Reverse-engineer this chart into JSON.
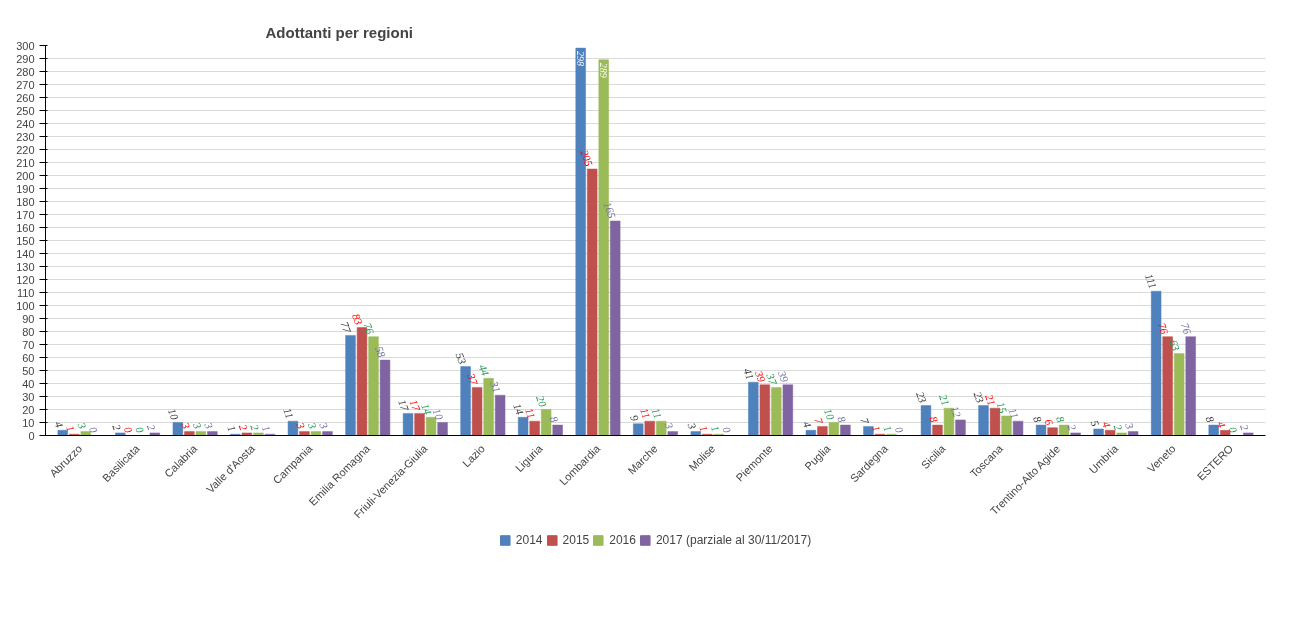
{
  "chart_data": {
    "type": "bar",
    "title": "Adottanti per regioni",
    "categories": [
      "Abruzzo",
      "Basilicata",
      "Calabria",
      "Valle d'Aosta",
      "Campania",
      "Emilia Romagna",
      "Friuli-Venezia-Giulia",
      "Lazio",
      "Liguria",
      "Lombardia",
      "Marche",
      "Molise",
      "Piemonte",
      "Puglia",
      "Sardegna",
      "Sicilia",
      "Toscana",
      "Trentino-Alto Agide",
      "Umbria",
      "Veneto",
      "ESTERO"
    ],
    "series": [
      {
        "name": "2014",
        "color": "#4f81bd",
        "values": [
          4,
          2,
          10,
          1,
          11,
          77,
          17,
          53,
          14,
          298,
          9,
          3,
          41,
          4,
          7,
          23,
          23,
          8,
          5,
          111,
          8
        ]
      },
      {
        "name": "2015",
        "color": "#c0504d",
        "values": [
          1,
          0,
          3,
          2,
          3,
          83,
          17,
          37,
          11,
          205,
          11,
          1,
          39,
          7,
          1,
          8,
          21,
          6,
          4,
          76,
          4
        ]
      },
      {
        "name": "2016",
        "color": "#9bbb59",
        "values": [
          3,
          0,
          3,
          2,
          3,
          76,
          14,
          44,
          20,
          289,
          11,
          1,
          37,
          10,
          1,
          21,
          15,
          8,
          2,
          63,
          0
        ]
      },
      {
        "name": "2017 (parziale al 30/11/2017)",
        "color": "#8064a2",
        "values": [
          0,
          2,
          3,
          1,
          3,
          58,
          10,
          31,
          8,
          165,
          3,
          0,
          39,
          8,
          0,
          12,
          11,
          2,
          3,
          76,
          2
        ]
      }
    ],
    "ylim": [
      0,
      300
    ],
    "yticks": [
      0,
      10,
      20,
      30,
      40,
      50,
      60,
      70,
      80,
      90,
      100,
      110,
      120,
      130,
      140,
      150,
      160,
      170,
      180,
      190,
      200,
      210,
      220,
      230,
      240,
      250,
      260,
      270,
      280,
      290,
      300
    ],
    "grid": "y",
    "legend": "bottom",
    "data_labels": true
  }
}
